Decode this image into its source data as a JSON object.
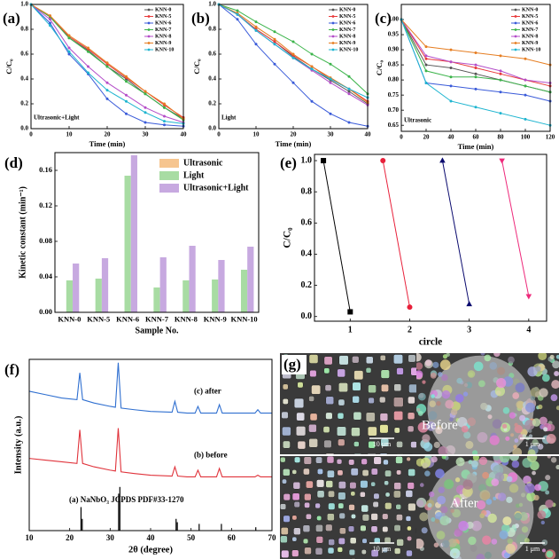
{
  "chart_data": [
    {
      "type": "line",
      "label": "(a)",
      "annotation": "Ultrasonic+Light",
      "xlabel": "Time (min)",
      "ylabel": "C/C₀",
      "legend": "upper right",
      "x": [
        0,
        5,
        10,
        15,
        20,
        25,
        30,
        35,
        40
      ],
      "xlim": [
        0,
        40
      ],
      "xticks": [
        0,
        10,
        20,
        30,
        40
      ],
      "ylim": [
        0,
        1
      ],
      "yticks": [
        {
          "value": 0,
          "label": "0.0"
        },
        0.2,
        0.4,
        0.6,
        0.8,
        {
          "value": 1,
          "label": "1.0"
        }
      ],
      "series": [
        {
          "name": "KNN-0",
          "color": "#555555",
          "values": [
            1,
            0.9,
            0.73,
            0.63,
            0.5,
            0.4,
            0.28,
            0.17,
            0.08
          ]
        },
        {
          "name": "KNN-5",
          "color": "#e8393a",
          "values": [
            1,
            0.9,
            0.74,
            0.64,
            0.52,
            0.41,
            0.3,
            0.19,
            0.09
          ]
        },
        {
          "name": "KNN-6",
          "color": "#3a5bd9",
          "values": [
            1,
            0.85,
            0.6,
            0.44,
            0.24,
            0.12,
            0.05,
            0.03,
            0.02
          ]
        },
        {
          "name": "KNN-7",
          "color": "#3cb44b",
          "values": [
            1,
            0.9,
            0.73,
            0.62,
            0.5,
            0.38,
            0.28,
            0.17,
            0.07
          ]
        },
        {
          "name": "KNN-8",
          "color": "#b44ec9",
          "values": [
            1,
            0.88,
            0.65,
            0.5,
            0.37,
            0.27,
            0.17,
            0.1,
            0.05
          ]
        },
        {
          "name": "KNN-9",
          "color": "#e67e22",
          "values": [
            1,
            0.91,
            0.75,
            0.65,
            0.53,
            0.42,
            0.3,
            0.2,
            0.08
          ]
        },
        {
          "name": "KNN-10",
          "color": "#1fb5d0",
          "values": [
            1,
            0.83,
            0.62,
            0.45,
            0.31,
            0.22,
            0.13,
            0.06,
            0.04
          ]
        }
      ]
    },
    {
      "type": "line",
      "label": "(b)",
      "annotation": "Light",
      "xlabel": "Time (min)",
      "ylabel": "C/C₀",
      "legend": "upper right",
      "x": [
        0,
        5,
        10,
        15,
        20,
        25,
        30,
        35,
        40
      ],
      "xlim": [
        0,
        40
      ],
      "xticks": [
        0,
        10,
        20,
        30,
        40
      ],
      "ylim": [
        0,
        1
      ],
      "yticks": [
        {
          "value": 0,
          "label": "0.0"
        },
        0.2,
        0.4,
        0.6,
        0.8,
        {
          "value": 1,
          "label": "1.0"
        }
      ],
      "series": [
        {
          "name": "KNN-0",
          "color": "#555555",
          "values": [
            1,
            0.92,
            0.8,
            0.7,
            0.58,
            0.48,
            0.39,
            0.3,
            0.2
          ]
        },
        {
          "name": "KNN-5",
          "color": "#e8393a",
          "values": [
            1,
            0.92,
            0.8,
            0.7,
            0.59,
            0.5,
            0.4,
            0.32,
            0.22
          ]
        },
        {
          "name": "KNN-6",
          "color": "#3a5bd9",
          "values": [
            1,
            0.88,
            0.68,
            0.52,
            0.37,
            0.22,
            0.12,
            0.05,
            0.02
          ]
        },
        {
          "name": "KNN-7",
          "color": "#3cb44b",
          "values": [
            1,
            0.95,
            0.86,
            0.78,
            0.7,
            0.6,
            0.52,
            0.42,
            0.28
          ]
        },
        {
          "name": "KNN-8",
          "color": "#b44ec9",
          "values": [
            1,
            0.92,
            0.79,
            0.68,
            0.57,
            0.47,
            0.37,
            0.28,
            0.19
          ]
        },
        {
          "name": "KNN-9",
          "color": "#e67e22",
          "values": [
            1,
            0.93,
            0.82,
            0.72,
            0.6,
            0.5,
            0.41,
            0.32,
            0.21
          ]
        },
        {
          "name": "KNN-10",
          "color": "#1fb5d0",
          "values": [
            1,
            0.92,
            0.79,
            0.68,
            0.57,
            0.48,
            0.4,
            0.32,
            0.25
          ]
        }
      ]
    },
    {
      "type": "line",
      "label": "(c)",
      "annotation": "Ultrasonic",
      "xlabel": "Time (min)",
      "ylabel": "C/C₀",
      "legend": "upper right",
      "x": [
        0,
        20,
        40,
        60,
        80,
        100,
        120
      ],
      "xlim": [
        0,
        120
      ],
      "xticks": [
        0,
        20,
        40,
        60,
        80,
        100,
        120
      ],
      "ylim": [
        0.63,
        1.05
      ],
      "yticks": [
        0.65,
        {
          "value": 0.7,
          "label": "0.70"
        },
        0.75,
        {
          "value": 0.8,
          "label": "0.80"
        },
        0.85,
        {
          "value": 0.9,
          "label": "0.90"
        },
        0.95,
        {
          "value": 1,
          "label": "1.00"
        }
      ],
      "series": [
        {
          "name": "KNN-0",
          "color": "#555555",
          "values": [
            1,
            0.85,
            0.84,
            0.82,
            0.8,
            0.78,
            0.76
          ]
        },
        {
          "name": "KNN-5",
          "color": "#e8393a",
          "values": [
            1,
            0.87,
            0.86,
            0.84,
            0.82,
            0.8,
            0.78
          ]
        },
        {
          "name": "KNN-6",
          "color": "#3a5bd9",
          "values": [
            1,
            0.79,
            0.78,
            0.77,
            0.76,
            0.75,
            0.73
          ]
        },
        {
          "name": "KNN-7",
          "color": "#3cb44b",
          "values": [
            1,
            0.83,
            0.81,
            0.81,
            0.8,
            0.78,
            0.76
          ]
        },
        {
          "name": "KNN-8",
          "color": "#b44ec9",
          "values": [
            1,
            0.88,
            0.86,
            0.85,
            0.83,
            0.8,
            0.79
          ]
        },
        {
          "name": "KNN-9",
          "color": "#e67e22",
          "values": [
            1,
            0.91,
            0.9,
            0.89,
            0.88,
            0.87,
            0.85
          ]
        },
        {
          "name": "KNN-10",
          "color": "#1fb5d0",
          "values": [
            1,
            0.79,
            0.73,
            0.71,
            0.69,
            0.67,
            0.65
          ]
        }
      ]
    },
    {
      "type": "bar",
      "label": "(d)",
      "xlabel": "Sample No.",
      "ylabel": "Kinetic constant (min⁻¹)",
      "legend": "upper right",
      "categories": [
        "KNN-0",
        "KNN-5",
        "KNN-6",
        "KNN-7",
        "KNN-8",
        "KNN-9",
        "KNN-10"
      ],
      "ylim": [
        0,
        0.18
      ],
      "yticks": [
        {
          "value": 0,
          "label": "0.00"
        },
        0.04,
        0.08,
        0.12,
        0.16
      ],
      "series": [
        {
          "name": "Ultrasonic",
          "color": "#f6c58f",
          "values": [
            0,
            0,
            0,
            0,
            0,
            0,
            0
          ]
        },
        {
          "name": "Light",
          "color": "#a8dca3",
          "values": [
            0.036,
            0.038,
            0.154,
            0.028,
            0.036,
            0.037,
            0.048
          ]
        },
        {
          "name": "Ultrasonic+Light",
          "color": "#c7a9e0",
          "values": [
            0.055,
            0.061,
            0.177,
            0.062,
            0.075,
            0.059,
            0.074
          ]
        }
      ]
    },
    {
      "type": "line",
      "label": "(e)",
      "xlabel": "circle",
      "ylabel": "C/C₀",
      "xlim": [
        0.4,
        4.3
      ],
      "xticks": [
        1,
        2,
        3,
        4
      ],
      "ylim": [
        -0.03,
        1.04
      ],
      "yticks": [
        {
          "value": 0,
          "label": "0.0"
        },
        0.2,
        0.4,
        0.6,
        0.8,
        {
          "value": 1,
          "label": "1.0"
        }
      ],
      "series": [
        {
          "color": "#000000",
          "marker": "square",
          "x": [
            0.55,
            1
          ],
          "values": [
            1,
            0.03
          ]
        },
        {
          "color": "#e8203a",
          "marker": "circle",
          "x": [
            1.55,
            2
          ],
          "values": [
            1,
            0.06
          ]
        },
        {
          "color": "#0a0a6e",
          "marker": "triangle",
          "x": [
            2.55,
            3
          ],
          "values": [
            1,
            0.08
          ]
        },
        {
          "color": "#ee2a7b",
          "marker": "triangle-down",
          "x": [
            3.55,
            4
          ],
          "values": [
            1,
            0.13
          ]
        }
      ]
    },
    {
      "type": "line",
      "label": "(f)",
      "xlabel": "2θ (degree)",
      "ylabel": "Intensity (a.u.)",
      "xlim": [
        10,
        70
      ],
      "xticks": [
        10,
        20,
        30,
        40,
        50,
        60,
        70
      ],
      "ylim": [
        0,
        102
      ],
      "x": [
        10,
        14,
        18,
        21.8,
        22.5,
        23.2,
        26,
        30,
        31.3,
        32,
        32.7,
        36,
        40,
        45.3,
        46,
        46.7,
        49,
        51,
        51.7,
        52.4,
        54,
        56.3,
        57,
        57.7,
        61,
        65.8,
        66.5,
        67.2,
        70
      ],
      "series": [
        {
          "name": "(c) after",
          "color": "#2f6fd0",
          "values": [
            83,
            81,
            79,
            78,
            94,
            78,
            76,
            74,
            73.5,
            100,
            73,
            72,
            71,
            70.5,
            77,
            70.5,
            70,
            70,
            74,
            70,
            70,
            70,
            75,
            70,
            70,
            70,
            72,
            70,
            70
          ]
        },
        {
          "name": "(b) before",
          "color": "#e0333b",
          "values": [
            43,
            42,
            41,
            40,
            60,
            40,
            38,
            36,
            35.5,
            61,
            35,
            34,
            33,
            32.5,
            38,
            32.5,
            32,
            32,
            36,
            32,
            32,
            32,
            37,
            32,
            32,
            32,
            33,
            32,
            32
          ]
        }
      ],
      "reference": {
        "name": "(a) NaNbO₃ JCPDS PDF#33-1270",
        "color": "#000000",
        "x": [
          22.8,
          23.1,
          32.1,
          32.4,
          46.3,
          46.6,
          52,
          57.5,
          66
        ],
        "values": [
          14,
          7,
          22,
          26,
          7,
          5,
          4,
          4,
          2
        ]
      }
    }
  ],
  "panel_g": {
    "label": "(g)",
    "top_label": "Before",
    "bottom_label": "After",
    "scale_bars": [
      "10 μm",
      "1 μm",
      "10 μm",
      "1 μm"
    ]
  }
}
